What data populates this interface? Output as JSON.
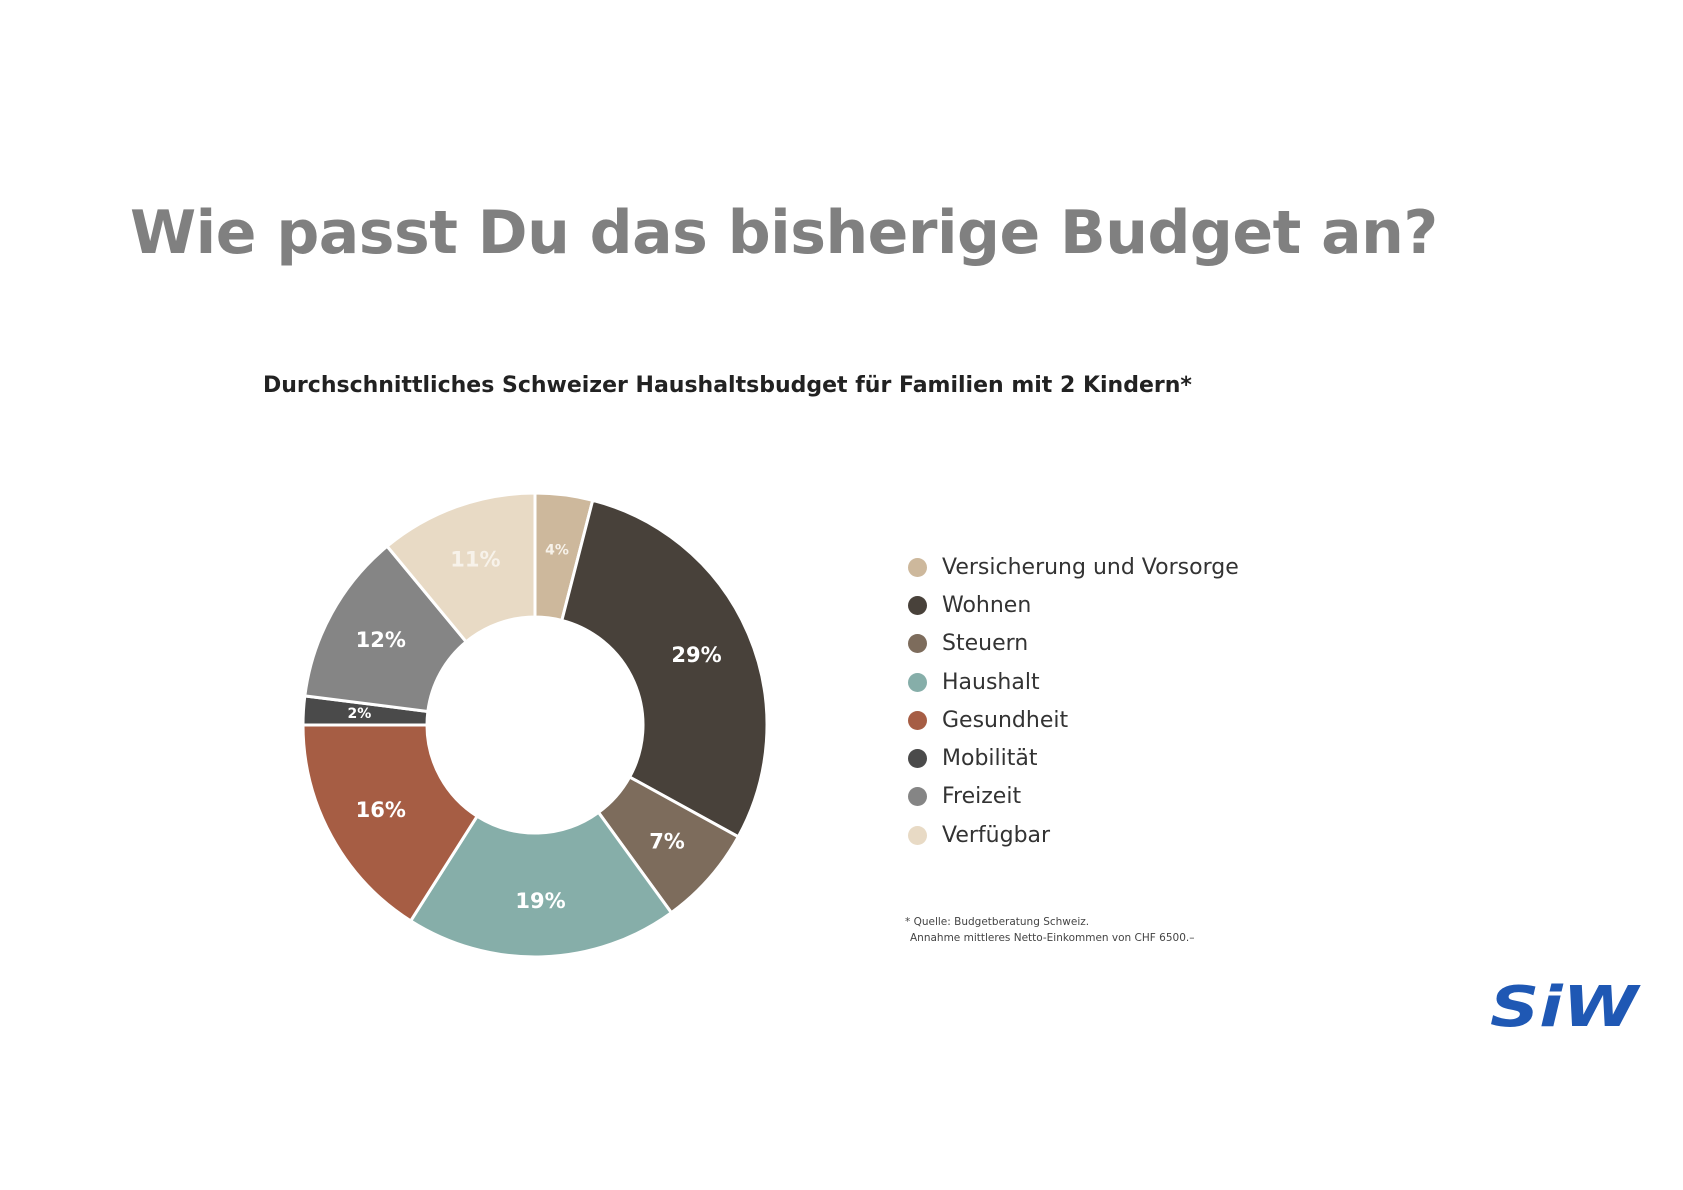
{
  "slide": {
    "title": "Wie passt Du das bisherige Budget an?"
  },
  "chart_data": {
    "type": "pie",
    "donut": true,
    "title": "Durchschnittliches Schweizer Haushaltsbudget für Familien mit 2 Kindern*",
    "legend_position": "right",
    "categories": [
      "Versicherung und Vorsorge",
      "Wohnen",
      "Steuern",
      "Haushalt",
      "Gesundheit",
      "Mobilität",
      "Freizeit",
      "Verfügbar"
    ],
    "values": [
      4,
      29,
      7,
      19,
      16,
      2,
      12,
      11
    ],
    "labels": [
      "4%",
      "29%",
      "7%",
      "19%",
      "16%",
      "2%",
      "12%",
      "11%"
    ],
    "colors": [
      "#cdb89c",
      "#48413a",
      "#7d6c5c",
      "#86aea9",
      "#a65d44",
      "#4a4a4a",
      "#858585",
      "#e8dac5"
    ]
  },
  "footnote": {
    "line1": "* Quelle: Budgetberatung Schweiz.",
    "line2": "Annahme mittleres Netto-Einkommen von CHF 6500.–"
  },
  "logo": {
    "text": "SiW",
    "color": "#1f58b4",
    "icon": "siw-logo"
  }
}
